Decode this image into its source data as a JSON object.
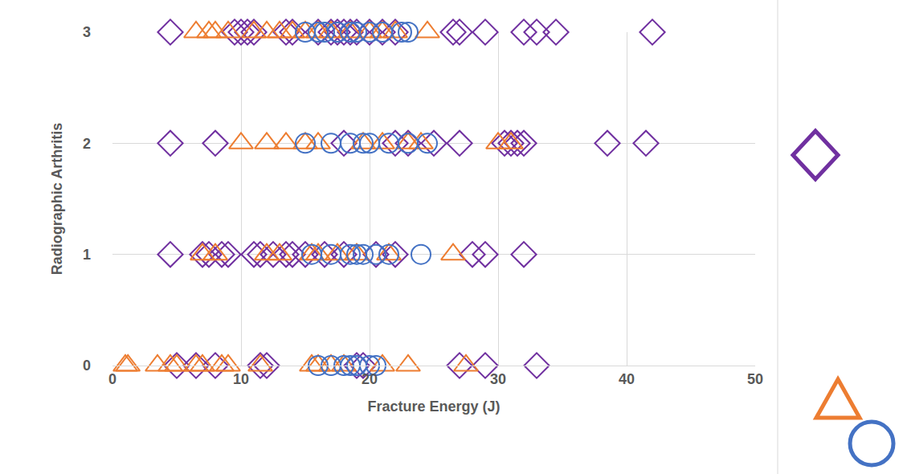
{
  "chart_data": {
    "type": "scatter",
    "x_label": "Fracture Energy (J)",
    "y_label": "Radiographic Arthritis",
    "xlim": [
      0,
      50
    ],
    "xticks": [
      0,
      10,
      20,
      30,
      40,
      50
    ],
    "ylim": [
      0,
      3
    ],
    "yticks": [
      0,
      1,
      2,
      3
    ],
    "grid": true,
    "series": [
      {
        "color": "#7030a0",
        "marker": "diamond",
        "x": [
          4.5,
          9.5,
          10,
          10.5,
          11,
          13.5,
          14,
          16,
          17,
          17.5,
          18,
          18.5,
          19,
          20,
          21,
          22,
          26.5,
          27,
          29,
          32,
          33,
          34.5,
          42,
          4.5,
          8,
          18,
          22,
          23,
          25,
          27,
          30.5,
          31,
          31.5,
          32,
          38.5,
          41.5,
          4.5,
          7,
          7.5,
          8.5,
          9,
          11,
          11.5,
          12.5,
          13.5,
          14,
          15,
          16.5,
          18,
          20.5,
          22,
          28,
          29,
          32,
          5,
          6.5,
          8,
          11.5,
          12,
          19,
          19.5,
          27,
          29,
          33
        ],
        "values": [
          3,
          3,
          3,
          3,
          3,
          3,
          3,
          3,
          3,
          3,
          3,
          3,
          3,
          3,
          3,
          3,
          3,
          3,
          3,
          3,
          3,
          3,
          3,
          2,
          2,
          2,
          2,
          2,
          2,
          2,
          2,
          2,
          2,
          2,
          2,
          2,
          1,
          1,
          1,
          1,
          1,
          1,
          1,
          1,
          1,
          1,
          1,
          1,
          1,
          1,
          1,
          1,
          1,
          1,
          0,
          0,
          0,
          0,
          0,
          0,
          0,
          0,
          0,
          0
        ]
      },
      {
        "color": "#ed7d31",
        "marker": "triangle",
        "x": [
          6.5,
          7.5,
          8,
          9,
          11,
          12,
          13,
          14,
          15,
          16,
          17,
          18.5,
          20,
          21,
          22,
          24.5,
          10,
          12,
          13.5,
          15,
          16,
          19.5,
          21,
          23,
          24,
          30,
          31,
          7,
          8,
          12,
          13,
          15.5,
          16,
          17.5,
          19,
          21.5,
          26.5,
          1,
          1.2,
          3.5,
          4.5,
          5,
          6.5,
          7,
          8.5,
          9,
          11.5,
          15.5,
          16,
          17,
          18,
          21,
          23,
          27.5
        ],
        "values": [
          3,
          3,
          3,
          3,
          3,
          3,
          3,
          3,
          3,
          3,
          3,
          3,
          3,
          3,
          3,
          3,
          2,
          2,
          2,
          2,
          2,
          2,
          2,
          2,
          2,
          2,
          2,
          1,
          1,
          1,
          1,
          1,
          1,
          1,
          1,
          1,
          1,
          0,
          0,
          0,
          0,
          0,
          0,
          0,
          0,
          0,
          0,
          0,
          0,
          0,
          0,
          0,
          0,
          0
        ]
      },
      {
        "color": "#4472c4",
        "marker": "circle",
        "x": [
          15,
          16,
          16.5,
          17.5,
          18.5,
          19,
          20,
          21,
          22.5,
          23,
          15,
          17,
          18.5,
          19.5,
          20,
          21.5,
          23,
          24.5,
          15.5,
          17,
          18.5,
          19,
          19.5,
          20.5,
          21.5,
          24,
          16,
          17,
          18,
          18.5,
          19,
          20,
          20.5
        ],
        "values": [
          3,
          3,
          3,
          3,
          3,
          3,
          3,
          3,
          3,
          3,
          2,
          2,
          2,
          2,
          2,
          2,
          2,
          2,
          1,
          1,
          1,
          1,
          1,
          1,
          1,
          1,
          0,
          0,
          0,
          0,
          0,
          0,
          0
        ]
      }
    ]
  }
}
